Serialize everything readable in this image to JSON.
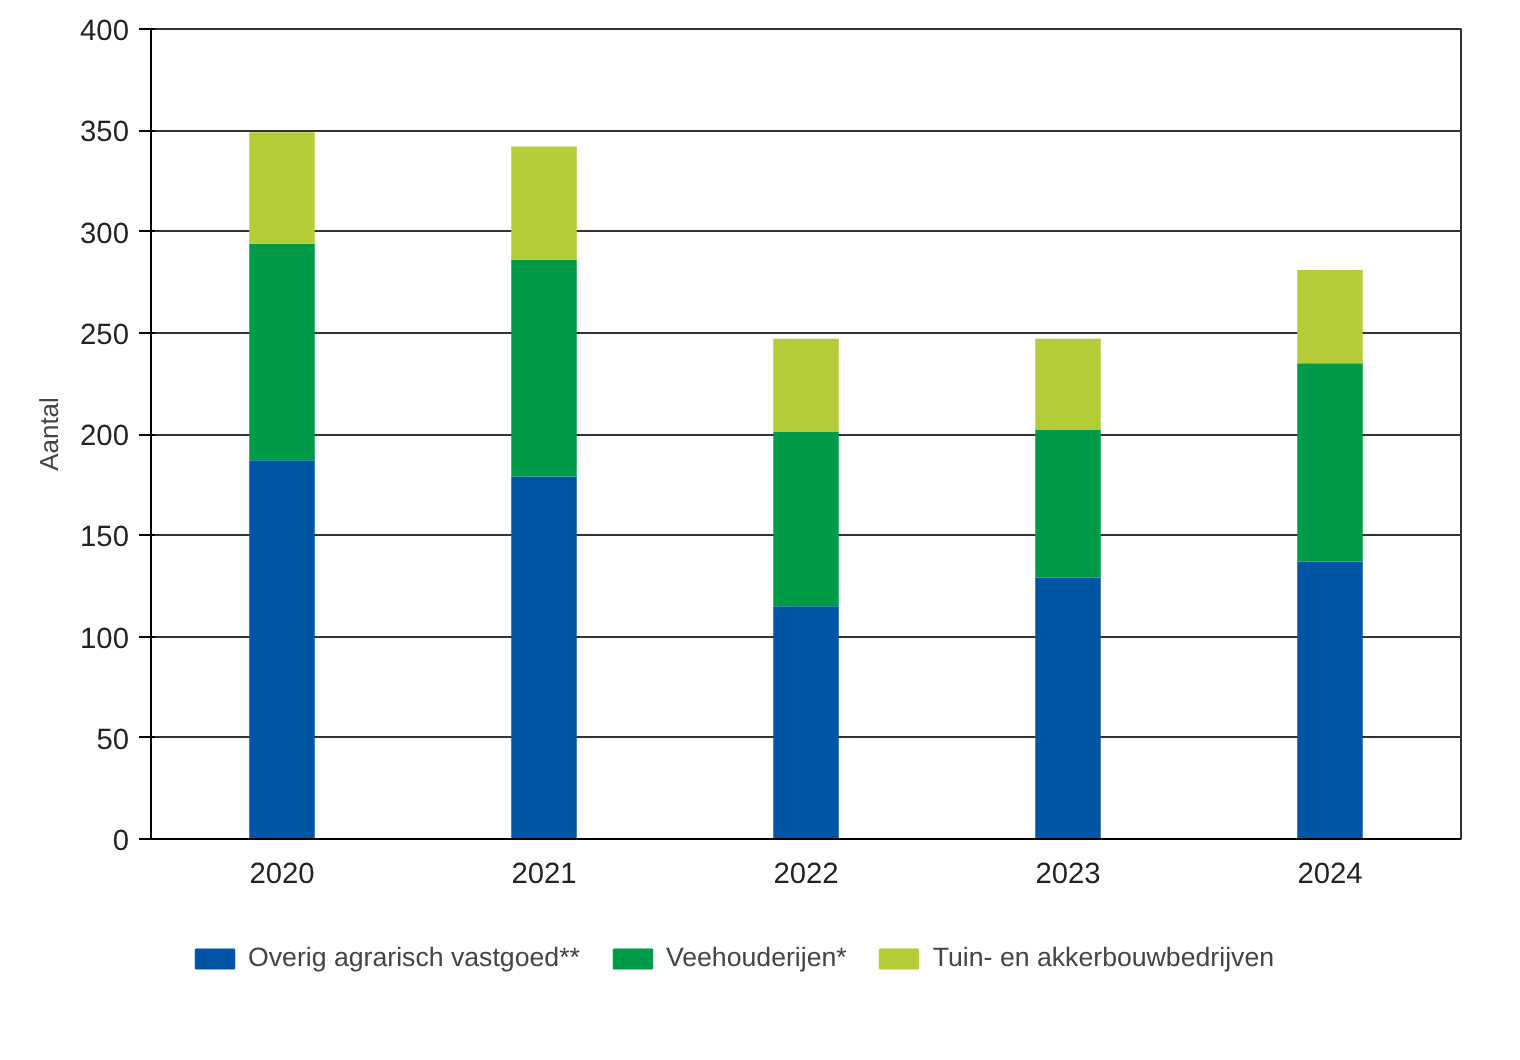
{
  "chart_data": {
    "type": "bar",
    "stacked": true,
    "ylabel": "Aantal",
    "categories": [
      "2020",
      "2021",
      "2022",
      "2023",
      "2024"
    ],
    "series": [
      {
        "name": "Overig agrarisch vastgoed**",
        "color": "#0055a5",
        "values": [
          187,
          179,
          115,
          129,
          137
        ]
      },
      {
        "name": "Veehouderijen*",
        "color": "#009b48",
        "values": [
          107,
          107,
          86,
          73,
          98
        ]
      },
      {
        "name": "Tuin- en akkerbouwbedrijven",
        "color": "#b4cc38",
        "values": [
          55,
          56,
          46,
          45,
          46
        ]
      }
    ],
    "ylim": [
      0,
      400
    ],
    "yticks": [
      0,
      50,
      100,
      150,
      200,
      250,
      300,
      350,
      400
    ],
    "grid": "y",
    "legend": "bottom"
  }
}
